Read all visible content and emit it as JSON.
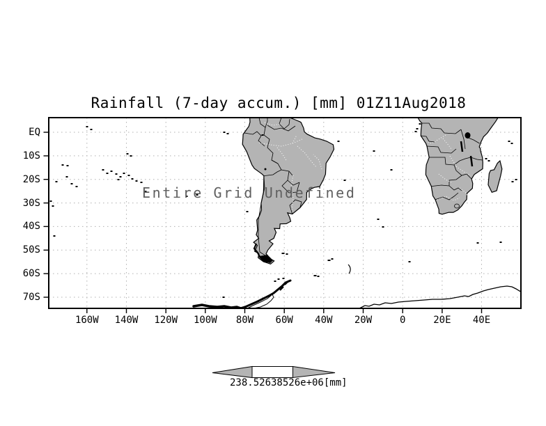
{
  "title": "Rainfall (7-day accum.) [mm] 01Z11Aug2018",
  "map": {
    "overlay_message": "Entire Grid Undefined",
    "lat_labels": [
      "EQ",
      "10S",
      "20S",
      "30S",
      "40S",
      "50S",
      "60S",
      "70S"
    ],
    "lon_labels": [
      "160W",
      "140W",
      "120W",
      "100W",
      "80W",
      "60W",
      "40W",
      "20W",
      "0",
      "20E",
      "40E"
    ]
  },
  "colorbar": {
    "label": "238.52638526e+06[mm]"
  },
  "colors": {
    "land": "#b4b4b4",
    "grid": "#b0b0b0",
    "frame": "#000000",
    "background": "#ffffff"
  },
  "chart_data": {
    "type": "heatmap",
    "title": "Rainfall (7-day accum.) [mm] 01Z11Aug2018",
    "x_tick_labels": [
      "160W",
      "140W",
      "120W",
      "100W",
      "80W",
      "60W",
      "40W",
      "20W",
      "0",
      "20E",
      "40E"
    ],
    "y_tick_labels": [
      "EQ",
      "10S",
      "20S",
      "30S",
      "40S",
      "50S",
      "60S",
      "70S"
    ],
    "x_range_lon_deg": [
      -179,
      60
    ],
    "y_range_lat_deg": [
      -75,
      6
    ],
    "values": [],
    "annotation": "Entire Grid Undefined",
    "colorbar_label": "238.52638526e+06[mm]",
    "legend_position": "bottom",
    "grid": true
  }
}
